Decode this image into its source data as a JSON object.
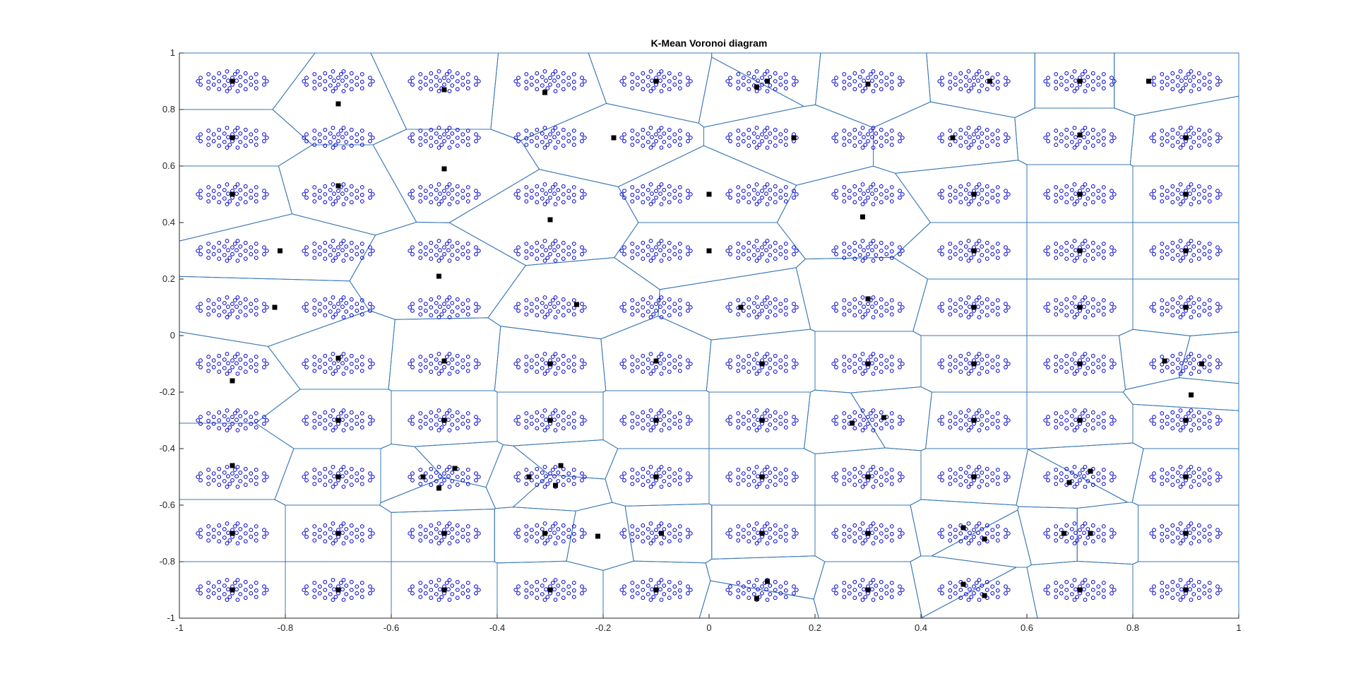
{
  "chart_data": {
    "type": "scatter",
    "title": "K-Mean Voronoi diagram",
    "xlabel": "",
    "ylabel": "",
    "xlim": [
      -1,
      1
    ],
    "ylim": [
      -1,
      1
    ],
    "x_ticks": [
      "-1",
      "-0.8",
      "-0.6",
      "-0.4",
      "-0.2",
      "0",
      "0.2",
      "0.4",
      "0.6",
      "0.8",
      "1"
    ],
    "y_ticks": [
      "-1",
      "-0.8",
      "-0.6",
      "-0.4",
      "-0.2",
      "0",
      "0.2",
      "0.4",
      "0.6",
      "0.8",
      "1"
    ],
    "grid": false,
    "legend": "none",
    "colors": {
      "points": "#0000cc",
      "centroids": "#000000",
      "edges": "#3a78b5",
      "axes": "#262626"
    },
    "cluster_grid": {
      "x_centers": [
        -0.9,
        -0.7,
        -0.5,
        -0.3,
        -0.1,
        0.1,
        0.3,
        0.5,
        0.7,
        0.9
      ],
      "y_centers": [
        0.9,
        0.7,
        0.5,
        0.3,
        0.1,
        -0.1,
        -0.3,
        -0.5,
        -0.7,
        -0.9
      ],
      "point_pattern": [
        [
          -0.01,
          0.035
        ],
        [
          0.01,
          0.035
        ],
        [
          -0.045,
          0.025
        ],
        [
          -0.025,
          0.028
        ],
        [
          0.005,
          0.025
        ],
        [
          0.025,
          0.028
        ],
        [
          0.045,
          0.025
        ],
        [
          -0.06,
          0.012
        ],
        [
          -0.035,
          0.012
        ],
        [
          -0.015,
          0.015
        ],
        [
          0.0,
          0.012
        ],
        [
          0.015,
          0.015
        ],
        [
          0.035,
          0.012
        ],
        [
          0.06,
          0.012
        ],
        [
          -0.065,
          0.0
        ],
        [
          -0.045,
          -0.002
        ],
        [
          -0.025,
          0.0
        ],
        [
          -0.008,
          0.002
        ],
        [
          0.008,
          0.002
        ],
        [
          0.025,
          0.0
        ],
        [
          0.045,
          -0.002
        ],
        [
          0.065,
          0.0
        ],
        [
          -0.06,
          -0.012
        ],
        [
          -0.035,
          -0.012
        ],
        [
          -0.015,
          -0.015
        ],
        [
          0.0,
          -0.012
        ],
        [
          0.015,
          -0.015
        ],
        [
          0.035,
          -0.012
        ],
        [
          0.06,
          -0.012
        ],
        [
          -0.045,
          -0.025
        ],
        [
          -0.025,
          -0.028
        ],
        [
          -0.005,
          -0.025
        ],
        [
          0.025,
          -0.028
        ],
        [
          0.045,
          -0.025
        ],
        [
          -0.01,
          -0.035
        ],
        [
          0.01,
          -0.035
        ]
      ]
    },
    "centroids": [
      [
        -0.9,
        0.9
      ],
      [
        -0.7,
        0.82
      ],
      [
        -0.5,
        0.87
      ],
      [
        -0.31,
        0.86
      ],
      [
        -0.1,
        0.9
      ],
      [
        0.09,
        0.88
      ],
      [
        0.11,
        0.9
      ],
      [
        0.3,
        0.89
      ],
      [
        0.53,
        0.9
      ],
      [
        0.7,
        0.9
      ],
      [
        0.83,
        0.9
      ],
      [
        -0.9,
        0.7
      ],
      [
        -0.18,
        0.7
      ],
      [
        0.16,
        0.7
      ],
      [
        0.46,
        0.7
      ],
      [
        0.7,
        0.71
      ],
      [
        0.9,
        0.7
      ],
      [
        -0.9,
        0.5
      ],
      [
        -0.7,
        0.53
      ],
      [
        -0.5,
        0.59
      ],
      [
        -0.3,
        0.41
      ],
      [
        0.0,
        0.5
      ],
      [
        0.29,
        0.42
      ],
      [
        0.5,
        0.5
      ],
      [
        0.7,
        0.5
      ],
      [
        0.9,
        0.5
      ],
      [
        -0.81,
        0.3
      ],
      [
        -0.51,
        0.21
      ],
      [
        0.0,
        0.3
      ],
      [
        0.5,
        0.3
      ],
      [
        0.7,
        0.3
      ],
      [
        0.9,
        0.3
      ],
      [
        -0.82,
        0.1
      ],
      [
        -0.25,
        0.11
      ],
      [
        0.06,
        0.1
      ],
      [
        0.3,
        0.13
      ],
      [
        0.5,
        0.1
      ],
      [
        0.7,
        0.1
      ],
      [
        0.9,
        0.1
      ],
      [
        -0.9,
        -0.16
      ],
      [
        -0.7,
        -0.08
      ],
      [
        -0.5,
        -0.09
      ],
      [
        -0.3,
        -0.1
      ],
      [
        -0.1,
        -0.09
      ],
      [
        0.1,
        -0.1
      ],
      [
        0.3,
        -0.1
      ],
      [
        0.5,
        -0.1
      ],
      [
        0.7,
        -0.1
      ],
      [
        0.86,
        -0.09
      ],
      [
        0.93,
        -0.1
      ],
      [
        -0.7,
        -0.3
      ],
      [
        -0.5,
        -0.3
      ],
      [
        -0.3,
        -0.3
      ],
      [
        -0.1,
        -0.3
      ],
      [
        0.1,
        -0.3
      ],
      [
        0.27,
        -0.31
      ],
      [
        0.33,
        -0.29
      ],
      [
        0.5,
        -0.3
      ],
      [
        0.7,
        -0.3
      ],
      [
        0.9,
        -0.3
      ],
      [
        0.91,
        -0.21
      ],
      [
        -0.9,
        -0.46
      ],
      [
        -0.7,
        -0.5
      ],
      [
        -0.54,
        -0.5
      ],
      [
        -0.48,
        -0.47
      ],
      [
        -0.51,
        -0.54
      ],
      [
        -0.34,
        -0.5
      ],
      [
        -0.28,
        -0.46
      ],
      [
        -0.29,
        -0.53
      ],
      [
        -0.1,
        -0.5
      ],
      [
        0.1,
        -0.5
      ],
      [
        0.3,
        -0.5
      ],
      [
        0.5,
        -0.5
      ],
      [
        0.68,
        -0.52
      ],
      [
        0.72,
        -0.48
      ],
      [
        0.9,
        -0.5
      ],
      [
        -0.9,
        -0.7
      ],
      [
        -0.7,
        -0.7
      ],
      [
        -0.5,
        -0.7
      ],
      [
        -0.31,
        -0.7
      ],
      [
        -0.21,
        -0.71
      ],
      [
        -0.09,
        -0.7
      ],
      [
        0.1,
        -0.7
      ],
      [
        0.3,
        -0.7
      ],
      [
        0.48,
        -0.68
      ],
      [
        0.52,
        -0.72
      ],
      [
        0.67,
        -0.7
      ],
      [
        0.72,
        -0.7
      ],
      [
        0.9,
        -0.7
      ],
      [
        -0.9,
        -0.9
      ],
      [
        -0.7,
        -0.9
      ],
      [
        -0.5,
        -0.9
      ],
      [
        -0.3,
        -0.9
      ],
      [
        -0.1,
        -0.9
      ],
      [
        0.09,
        -0.93
      ],
      [
        0.11,
        -0.87
      ],
      [
        0.3,
        -0.9
      ],
      [
        0.48,
        -0.88
      ],
      [
        0.52,
        -0.92
      ],
      [
        0.7,
        -0.9
      ],
      [
        0.9,
        -0.9
      ]
    ]
  }
}
